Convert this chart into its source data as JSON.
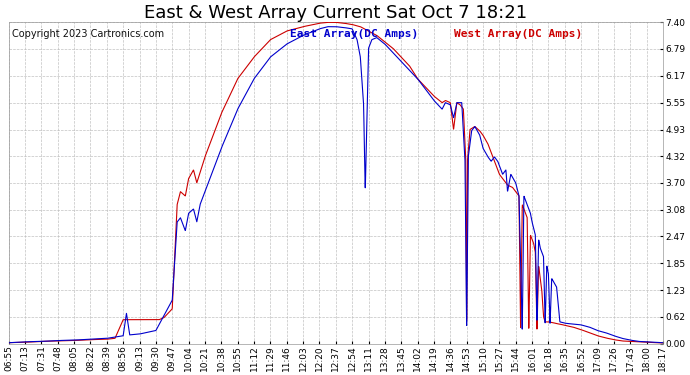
{
  "title": "East & West Array Current Sat Oct 7 18:21",
  "copyright": "Copyright 2023 Cartronics.com",
  "east_label": "East Array(DC Amps)",
  "west_label": "West Array(DC Amps)",
  "east_color": "#0000cc",
  "west_color": "#cc0000",
  "background_color": "#ffffff",
  "grid_color": "#bbbbbb",
  "yticks": [
    0.0,
    0.62,
    1.23,
    1.85,
    2.47,
    3.08,
    3.7,
    4.32,
    4.93,
    5.55,
    6.17,
    6.79,
    7.4
  ],
  "ylim": [
    0.0,
    7.4
  ],
  "x_labels": [
    "06:55",
    "07:13",
    "07:31",
    "07:48",
    "08:05",
    "08:22",
    "08:39",
    "08:56",
    "09:13",
    "09:30",
    "09:47",
    "10:04",
    "10:21",
    "10:38",
    "10:55",
    "11:12",
    "11:29",
    "11:46",
    "12:03",
    "12:20",
    "12:37",
    "12:54",
    "13:11",
    "13:28",
    "13:45",
    "14:02",
    "14:19",
    "14:36",
    "14:53",
    "15:10",
    "15:27",
    "15:44",
    "16:01",
    "16:18",
    "16:35",
    "16:52",
    "17:09",
    "17:26",
    "17:43",
    "18:00",
    "18:17"
  ],
  "title_fontsize": 13,
  "label_fontsize": 8,
  "tick_fontsize": 6.5,
  "copyright_fontsize": 7
}
